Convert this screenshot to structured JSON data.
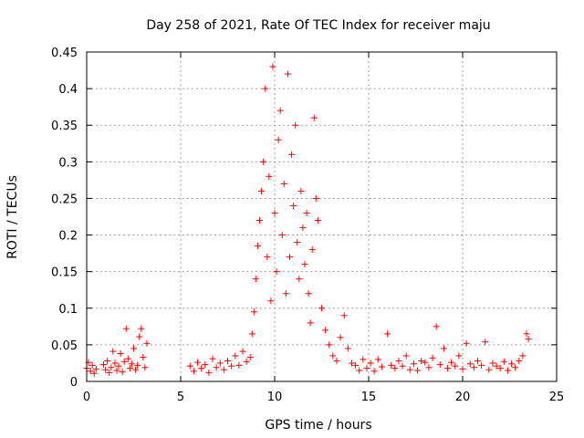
{
  "chart_data": {
    "type": "scatter",
    "title": "Day 258 of 2021, Rate Of TEC Index for receiver maju",
    "xlabel": "GPS time / hours",
    "ylabel": "ROTI / TECUs",
    "xlim": [
      0,
      25
    ],
    "ylim": [
      0,
      0.45
    ],
    "xticks": [
      0,
      5,
      10,
      15,
      20,
      25
    ],
    "xtick_labels": [
      "0",
      "5",
      "10",
      "15",
      "20",
      "25"
    ],
    "yticks": [
      0,
      0.05,
      0.1,
      0.15,
      0.2,
      0.25,
      0.3,
      0.35,
      0.4,
      0.45
    ],
    "ytick_labels": [
      "0",
      "0.05",
      "0.1",
      "0.15",
      "0.2",
      "0.25",
      "0.3",
      "0.35",
      "0.4",
      "0.45"
    ],
    "grid": true,
    "marker": "+",
    "color": "#ff0000",
    "series": [
      {
        "name": "ROTI",
        "x": [
          0.0,
          0.1,
          0.2,
          0.3,
          0.4,
          0.5,
          0.9,
          1.0,
          1.1,
          1.2,
          1.3,
          1.4,
          1.5,
          1.6,
          1.7,
          1.8,
          1.9,
          2.0,
          2.1,
          2.2,
          2.3,
          2.4,
          2.5,
          2.6,
          2.7,
          2.8,
          2.9,
          3.0,
          3.1,
          3.2,
          5.5,
          5.7,
          5.9,
          6.1,
          6.3,
          6.5,
          6.7,
          6.9,
          7.1,
          7.3,
          7.5,
          7.7,
          7.9,
          8.1,
          8.3,
          8.5,
          8.7,
          8.8,
          8.9,
          9.0,
          9.1,
          9.2,
          9.3,
          9.4,
          9.5,
          9.6,
          9.7,
          9.8,
          9.9,
          10.0,
          10.1,
          10.2,
          10.3,
          10.4,
          10.5,
          10.6,
          10.7,
          10.8,
          10.9,
          11.0,
          11.1,
          11.2,
          11.3,
          11.4,
          11.5,
          11.6,
          11.7,
          11.8,
          11.9,
          12.0,
          12.1,
          12.2,
          12.3,
          12.5,
          12.7,
          12.9,
          13.1,
          13.3,
          13.5,
          13.7,
          13.9,
          14.1,
          14.3,
          14.5,
          14.7,
          14.9,
          15.1,
          15.3,
          15.5,
          15.7,
          16.0,
          16.2,
          16.4,
          16.6,
          16.8,
          17.0,
          17.2,
          17.4,
          17.6,
          17.8,
          18.0,
          18.2,
          18.4,
          18.6,
          18.8,
          19.0,
          19.2,
          19.4,
          19.6,
          19.8,
          20.0,
          20.2,
          20.4,
          20.6,
          20.8,
          21.0,
          21.2,
          21.4,
          21.6,
          21.8,
          22.0,
          22.2,
          22.4,
          22.6,
          22.8,
          23.0,
          23.2,
          23.4,
          23.5
        ],
        "y": [
          0.018,
          0.026,
          0.014,
          0.022,
          0.011,
          0.017,
          0.023,
          0.016,
          0.028,
          0.012,
          0.019,
          0.041,
          0.025,
          0.015,
          0.021,
          0.038,
          0.013,
          0.027,
          0.072,
          0.031,
          0.018,
          0.024,
          0.045,
          0.016,
          0.022,
          0.061,
          0.072,
          0.033,
          0.019,
          0.052,
          0.021,
          0.014,
          0.026,
          0.018,
          0.023,
          0.012,
          0.031,
          0.019,
          0.025,
          0.016,
          0.028,
          0.021,
          0.035,
          0.022,
          0.041,
          0.027,
          0.033,
          0.065,
          0.095,
          0.14,
          0.185,
          0.22,
          0.26,
          0.3,
          0.4,
          0.17,
          0.28,
          0.11,
          0.43,
          0.23,
          0.15,
          0.33,
          0.37,
          0.2,
          0.27,
          0.12,
          0.42,
          0.17,
          0.31,
          0.24,
          0.35,
          0.19,
          0.14,
          0.26,
          0.21,
          0.16,
          0.23,
          0.12,
          0.08,
          0.18,
          0.36,
          0.25,
          0.22,
          0.1,
          0.07,
          0.05,
          0.035,
          0.028,
          0.06,
          0.09,
          0.045,
          0.025,
          0.022,
          0.015,
          0.03,
          0.018,
          0.025,
          0.014,
          0.03,
          0.02,
          0.065,
          0.022,
          0.018,
          0.028,
          0.021,
          0.035,
          0.016,
          0.024,
          0.015,
          0.028,
          0.026,
          0.019,
          0.032,
          0.075,
          0.023,
          0.045,
          0.018,
          0.026,
          0.021,
          0.035,
          0.017,
          0.052,
          0.024,
          0.019,
          0.028,
          0.022,
          0.054,
          0.016,
          0.025,
          0.021,
          0.018,
          0.027,
          0.015,
          0.024,
          0.019,
          0.028,
          0.035,
          0.065,
          0.058
        ]
      }
    ]
  }
}
